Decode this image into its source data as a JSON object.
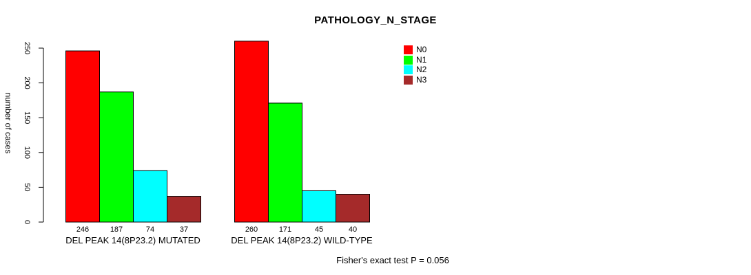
{
  "chart_data": {
    "type": "bar",
    "title": "PATHOLOGY_N_STAGE",
    "ylabel": "number of cases",
    "xlabel": "",
    "footnote": "Fisher's exact test P = 0.056",
    "categories": [
      "DEL PEAK 14(8P23.2) MUTATED",
      "DEL PEAK 14(8P23.2) WILD-TYPE"
    ],
    "series": [
      {
        "name": "N0",
        "color": "#ff0000",
        "values": [
          246,
          260
        ]
      },
      {
        "name": "N1",
        "color": "#00ff00",
        "values": [
          187,
          171
        ]
      },
      {
        "name": "N2",
        "color": "#00ffff",
        "values": [
          74,
          45
        ]
      },
      {
        "name": "N3",
        "color": "#a52a2a",
        "values": [
          37,
          40
        ]
      }
    ],
    "yticks": [
      0,
      50,
      100,
      150,
      200,
      250
    ],
    "ylim": [
      0,
      250
    ],
    "bar_value_labels_shown": true,
    "legend_position": "top-right",
    "grid": false,
    "bar_border_color": "#000000",
    "background_color": "#ffffff"
  }
}
